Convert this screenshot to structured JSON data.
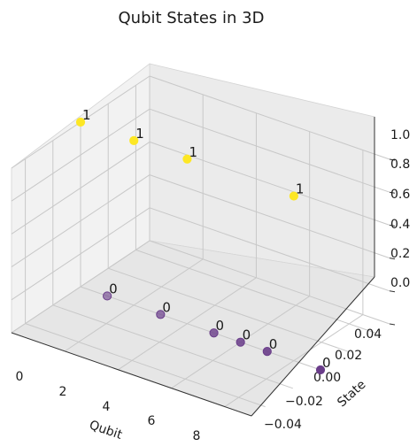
{
  "chart_data": {
    "type": "scatter",
    "projection": "3d",
    "title": "Qubit States in 3D",
    "xlabel": "Qubit",
    "ylabel": "State",
    "zlabel": "",
    "x_ticks": [
      "0",
      "2",
      "4",
      "6",
      "8"
    ],
    "y_ticks": [
      "−0.04",
      "−0.02",
      "0.00",
      "0.02",
      "0.04"
    ],
    "z_ticks": [
      "0.0",
      "0.2",
      "0.4",
      "0.6",
      "0.8",
      "1.0"
    ],
    "xlim": [
      0,
      9
    ],
    "ylim": [
      -0.05,
      0.05
    ],
    "zlim": [
      0,
      1.0
    ],
    "grid": true,
    "colormap": "viridis",
    "colors": {
      "state_0": "#6a3d8a",
      "state_1": "#fde725"
    },
    "points": [
      {
        "qubit": 0,
        "state": 0,
        "z": 1,
        "label": "1"
      },
      {
        "qubit": 1,
        "state": 0,
        "z": 0,
        "label": "0"
      },
      {
        "qubit": 2,
        "state": 0,
        "z": 1,
        "label": "1"
      },
      {
        "qubit": 3,
        "state": 0,
        "z": 0,
        "label": "0"
      },
      {
        "qubit": 4,
        "state": 0,
        "z": 1,
        "label": "1"
      },
      {
        "qubit": 5,
        "state": 0,
        "z": 0,
        "label": "0"
      },
      {
        "qubit": 6,
        "state": 0,
        "z": 0,
        "label": "0"
      },
      {
        "qubit": 7,
        "state": 0,
        "z": 0,
        "label": "0"
      },
      {
        "qubit": 8,
        "state": 0,
        "z": 1,
        "label": "1"
      },
      {
        "qubit": 9,
        "state": 0,
        "z": 0,
        "label": "0"
      }
    ]
  }
}
